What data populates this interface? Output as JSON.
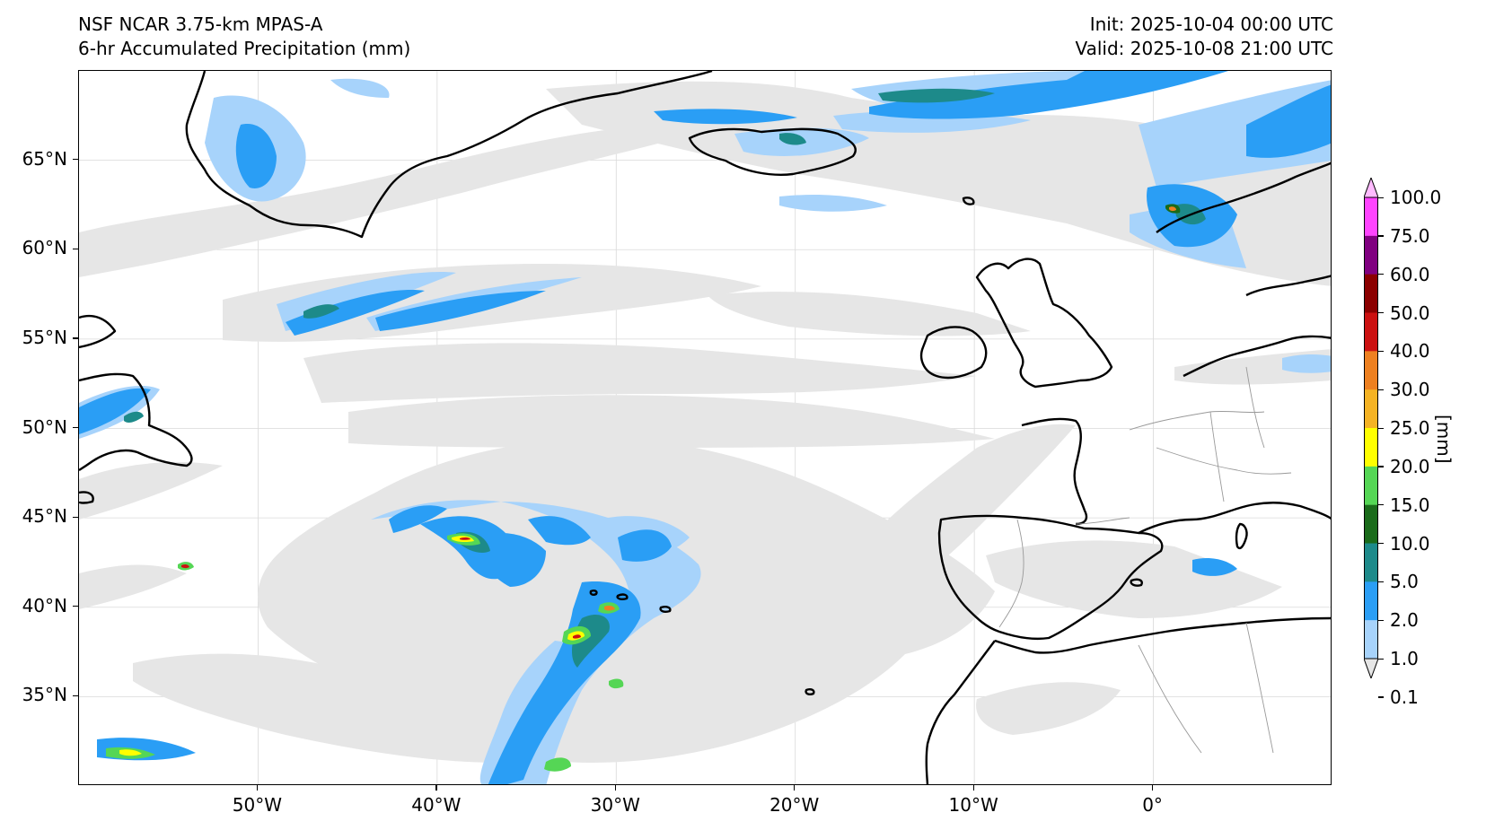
{
  "header": {
    "model": "NSF NCAR 3.75-km MPAS-A",
    "field": "6-hr Accumulated Precipitation (mm)",
    "init": "Init: 2025-10-04 00:00 UTC",
    "valid": "Valid: 2025-10-08 21:00 UTC"
  },
  "map": {
    "lon_range": [
      -60,
      10
    ],
    "lat_range": [
      30,
      70
    ],
    "lat_ticks": [
      "65°N",
      "60°N",
      "55°N",
      "50°N",
      "45°N",
      "40°N",
      "35°N"
    ],
    "lat_values": [
      65,
      60,
      55,
      50,
      45,
      40,
      35
    ],
    "lon_ticks": [
      "50°W",
      "40°W",
      "30°W",
      "20°W",
      "10°W",
      "0°"
    ],
    "lon_values": [
      -50,
      -40,
      -30,
      -20,
      -10,
      0
    ],
    "colors": {
      "c01": "#e6e6e6",
      "c1": "#a7d3fb",
      "c2": "#2a9ef5",
      "c5": "#1d8a8a",
      "c10": "#1a6b1a",
      "c15": "#55d655",
      "c20": "#ffff00",
      "c25": "#f5b324",
      "c30": "#ee8020",
      "c40": "#cc1111",
      "c50": "#8b0000",
      "c60": "#800080",
      "c75": "#ff44ff",
      "c100": "#ffbbff"
    }
  },
  "colorbar": {
    "unit": "[mm]",
    "labels": [
      "100.0",
      "75.0",
      "60.0",
      "50.0",
      "40.0",
      "30.0",
      "25.0",
      "20.0",
      "15.0",
      "10.0",
      "5.0",
      "2.0",
      "1.0",
      "0.1"
    ],
    "colors": [
      "#ffbbff",
      "#ff44ff",
      "#800080",
      "#8b0000",
      "#cc1111",
      "#ee8020",
      "#f5b324",
      "#ffff00",
      "#55d655",
      "#1a6b1a",
      "#1d8a8a",
      "#2a9ef5",
      "#a7d3fb",
      "#e6e6e6"
    ]
  }
}
